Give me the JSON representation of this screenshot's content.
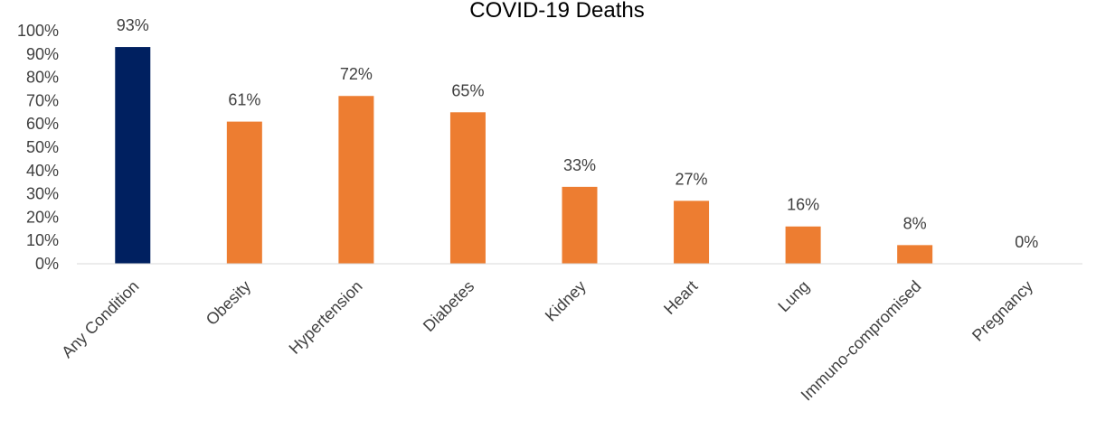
{
  "chart_data": {
    "type": "bar",
    "title": "COVID-19 Deaths",
    "categories": [
      "Any Condition",
      "Obesity",
      "Hypertension",
      "Diabetes",
      "Kidney",
      "Heart",
      "Lung",
      "Immuno-compromised",
      "Pregnancy"
    ],
    "values": [
      93,
      61,
      72,
      65,
      33,
      27,
      16,
      8,
      0
    ],
    "data_labels": [
      "93%",
      "61%",
      "72%",
      "65%",
      "33%",
      "27%",
      "16%",
      "8%",
      "0%"
    ],
    "y_ticks": [
      "0%",
      "10%",
      "20%",
      "30%",
      "40%",
      "50%",
      "60%",
      "70%",
      "80%",
      "90%",
      "100%"
    ],
    "ylim": [
      0,
      100
    ],
    "grid": false,
    "legend": "none",
    "xlabel": "",
    "ylabel": "",
    "colors": {
      "highlight": "#002060",
      "bars": "#ED7D31",
      "axis": "#D9D9D9",
      "text": "#404040"
    }
  }
}
